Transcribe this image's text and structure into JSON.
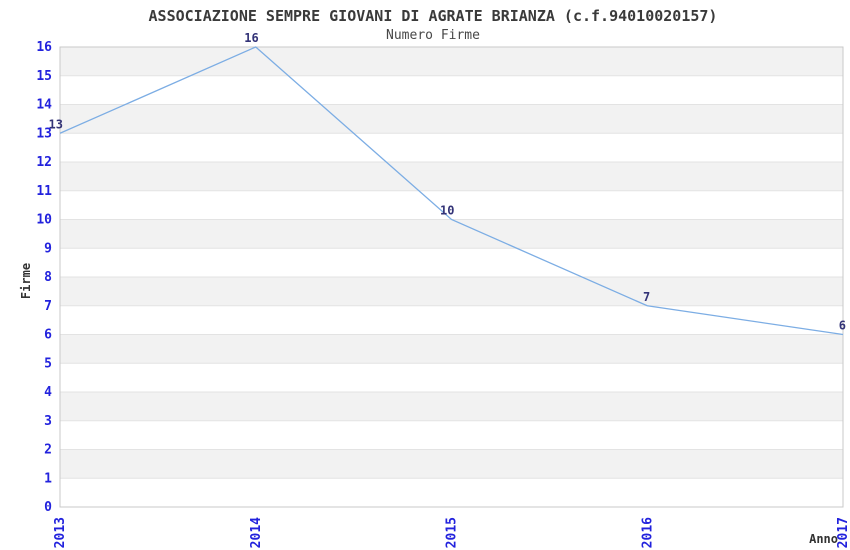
{
  "chart_data": {
    "type": "line",
    "title": "ASSOCIAZIONE SEMPRE GIOVANI DI AGRATE BRIANZA (c.f.94010020157)",
    "subtitle": "Numero Firme",
    "xlabel": "Anno",
    "ylabel": "Firme",
    "x": [
      "2013",
      "2014",
      "2015",
      "2016",
      "2017"
    ],
    "series": [
      {
        "name": "Numero Firme",
        "values": [
          13,
          16,
          10,
          7,
          6
        ]
      }
    ],
    "point_labels": [
      "13",
      "16",
      "10",
      "7",
      "6"
    ],
    "ylim": [
      0,
      16
    ],
    "y_tick_step": 1,
    "grid": "horizontal, alternating shaded bands",
    "legend": "none",
    "colors": {
      "line": "#7cade4",
      "tick_label": "#2222dd",
      "point_label": "#333377",
      "band_shaded": "#f2f2f2",
      "band_plain": "#ffffff",
      "gridline": "#e3e3e3",
      "plot_border": "#c9c9c9",
      "title": "#3a3a3a",
      "axis_label": "#333333",
      "background": "#ffffff"
    }
  }
}
